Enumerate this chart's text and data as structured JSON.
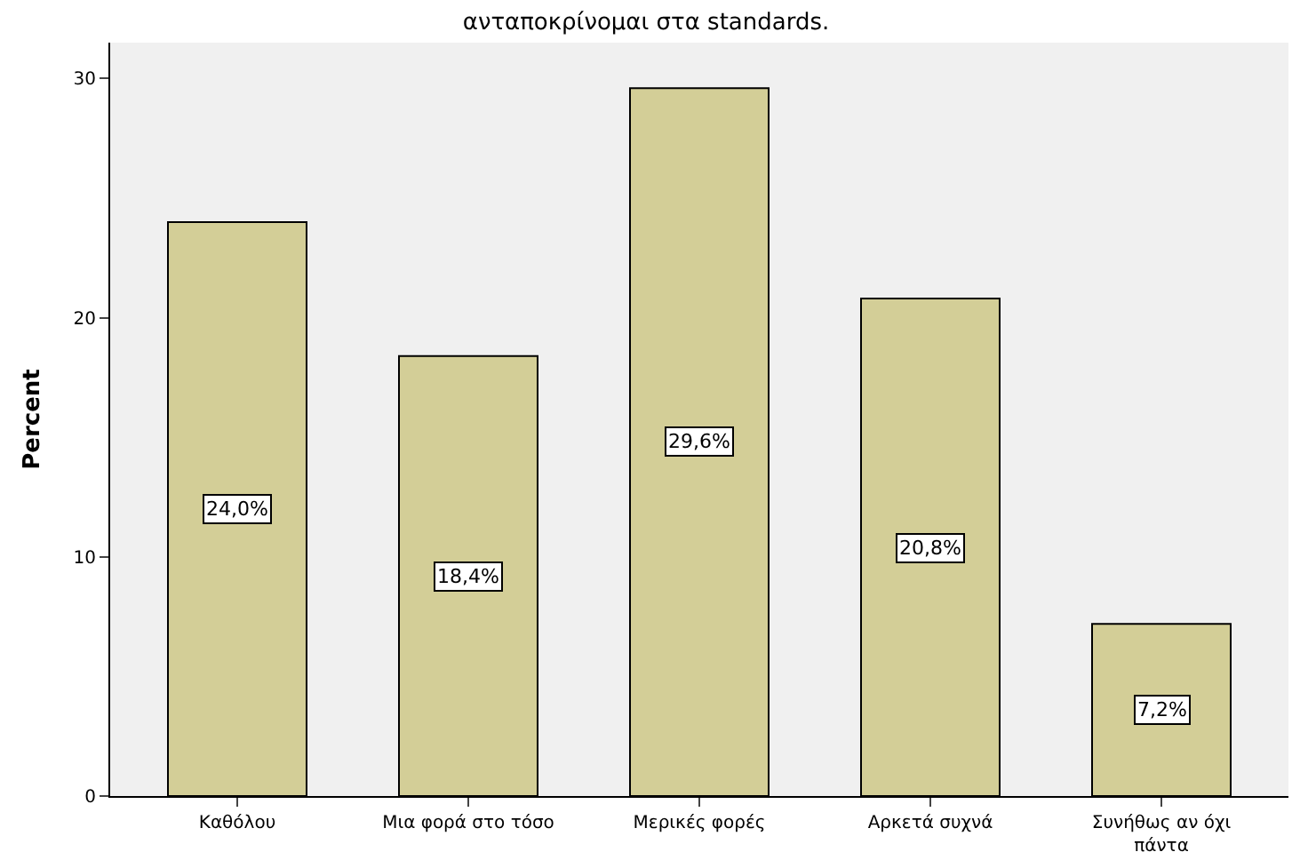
{
  "chart_data": {
    "type": "bar",
    "title": "ανταποκρίνομαι στα standards.",
    "ylabel": "Percent",
    "categories": [
      "Καθόλου",
      "Μια φορά στο τόσο",
      "Μερικές φορές",
      "Αρκετά συχνά",
      "Συνήθως αν όχι πάντα"
    ],
    "values": [
      24.0,
      18.4,
      29.6,
      20.8,
      7.2
    ],
    "value_labels": [
      "24,0%",
      "18,4%",
      "29,6%",
      "20,8%",
      "7,2%"
    ],
    "color": "#d3ce97",
    "ylim": [
      0,
      31.5
    ],
    "yticks": [
      0,
      10,
      20,
      30
    ],
    "grid": false,
    "legend": false
  }
}
